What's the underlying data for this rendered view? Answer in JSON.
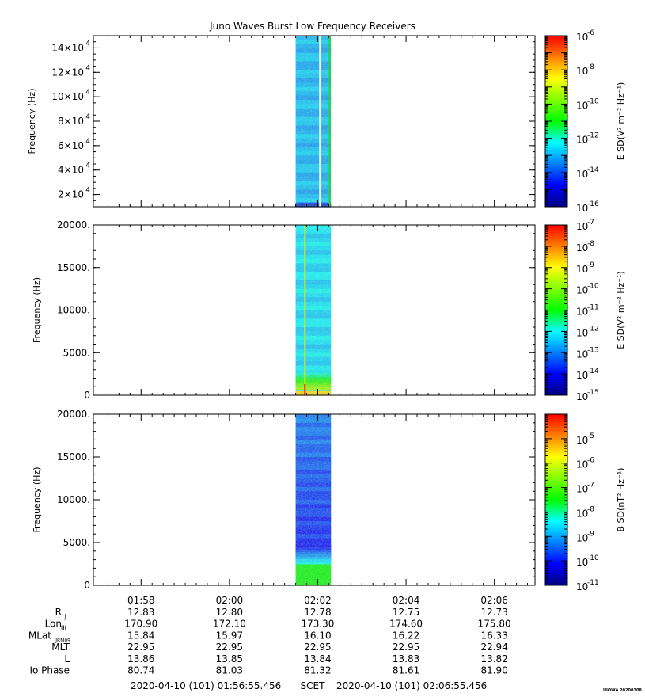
{
  "title": "Juno Waves Burst Low Frequency Receivers",
  "credit": "UIOWA 20200308",
  "colors": {
    "background": "#ffffff",
    "axis": "#000000",
    "colormap": [
      "#00007f",
      "#0000ff",
      "#0080ff",
      "#00ffff",
      "#00ff00",
      "#80ff00",
      "#ffff00",
      "#ff8000",
      "#ff0000"
    ]
  },
  "time_axis": {
    "tick_labels": [
      "01:58",
      "02:00",
      "02:02",
      "02:04",
      "02:06"
    ],
    "start_label": "2020-04-10 (101) 01:56:55.456",
    "scet_label": "SCET",
    "end_label": "2020-04-10 (101) 02:06:55.456"
  },
  "ephemeris": {
    "rows": [
      {
        "name": "R",
        "sub": "J",
        "values": [
          "12.83",
          "12.80",
          "12.78",
          "12.75",
          "12.73"
        ]
      },
      {
        "name": "Lon",
        "sub": "III",
        "values": [
          "170.90",
          "172.10",
          "173.30",
          "174.60",
          "175.80"
        ]
      },
      {
        "name": "MLat",
        "sub": "JRM09",
        "values": [
          "15.84",
          "15.97",
          "16.10",
          "16.22",
          "16.33"
        ]
      },
      {
        "name": "MLT",
        "sub": "",
        "values": [
          "22.95",
          "22.95",
          "22.95",
          "22.95",
          "22.94"
        ]
      },
      {
        "name": "L",
        "sub": "",
        "values": [
          "13.86",
          "13.85",
          "13.84",
          "13.83",
          "13.82"
        ]
      },
      {
        "name": "Io Phase",
        "sub": "",
        "values": [
          "80.74",
          "81.03",
          "81.32",
          "81.61",
          "81.90"
        ]
      }
    ]
  },
  "chart_data": [
    {
      "type": "heatmap",
      "title": "Juno Waves Burst Low Frequency Receivers",
      "ylabel": "Frequency (Hz)",
      "ylim": [
        10000,
        150000
      ],
      "yticks": [
        {
          "value": 20000,
          "mant": "2",
          "exp": "4"
        },
        {
          "value": 40000,
          "mant": "4",
          "exp": "4"
        },
        {
          "value": 60000,
          "mant": "6",
          "exp": "4"
        },
        {
          "value": 80000,
          "mant": "8",
          "exp": "4"
        },
        {
          "value": 100000,
          "mant": "10",
          "exp": "4"
        },
        {
          "value": 120000,
          "mant": "12",
          "exp": "4"
        },
        {
          "value": 140000,
          "mant": "14",
          "exp": "4"
        }
      ],
      "xlim_min": [
        -5.08,
        4.92
      ],
      "data_interval_min": [
        -0.5,
        0.3
      ],
      "features": [
        {
          "kind": "gap-line",
          "x_min": 0.05,
          "color": "#ffffff"
        },
        {
          "kind": "line",
          "x_min": 0.27,
          "color": "#33cc33"
        }
      ],
      "baseline_level": 0.31,
      "low_band": {
        "max_freq": 13000,
        "level": 0.18
      },
      "colorbar": {
        "label_main": "E SD(V",
        "label_units": [
          [
            "2",
            ""
          ],
          [
            " m",
            ""
          ],
          [
            "-2",
            ""
          ],
          [
            " Hz",
            ""
          ],
          [
            "-1",
            ""
          ]
        ],
        "label": "E SD(V² m⁻² Hz⁻¹)",
        "scale": "log",
        "range_exp": [
          -16,
          -6
        ],
        "labeled_exps": [
          -16,
          -14,
          -12,
          -10,
          -8,
          -6
        ]
      }
    },
    {
      "type": "heatmap",
      "ylabel": "Frequency (Hz)",
      "ylim": [
        0,
        20000
      ],
      "yticks": [
        {
          "value": 0,
          "text": "0"
        },
        {
          "value": 5000,
          "text": "5000."
        },
        {
          "value": 10000,
          "text": "10000."
        },
        {
          "value": 15000,
          "text": "15000."
        },
        {
          "value": 20000,
          "text": "20000."
        }
      ],
      "xlim_min": [
        -5.08,
        4.92
      ],
      "data_interval_min": [
        -0.5,
        0.3
      ],
      "features": [
        {
          "kind": "line",
          "x_min": -0.29,
          "color": "#e6e600",
          "bottom_color": "#ff2000"
        }
      ],
      "baseline_level": 0.35,
      "low_band": {
        "max_freq": 700,
        "level": 0.78
      },
      "colorbar": {
        "label": "E SD(V² m⁻² Hz⁻¹)",
        "scale": "log",
        "range_exp": [
          -15,
          -7
        ],
        "labeled_exps": [
          -15,
          -14,
          -13,
          -12,
          -11,
          -10,
          -9,
          -8,
          -7
        ]
      }
    },
    {
      "type": "heatmap",
      "ylabel": "Frequency (Hz)",
      "ylim": [
        0,
        20000
      ],
      "yticks": [
        {
          "value": 0,
          "text": "0"
        },
        {
          "value": 5000,
          "text": "5000."
        },
        {
          "value": 10000,
          "text": "10000."
        },
        {
          "value": 15000,
          "text": "15000."
        },
        {
          "value": 20000,
          "text": "20000."
        }
      ],
      "xlim_min": [
        -5.08,
        4.92
      ],
      "data_interval_min": [
        -0.5,
        0.3
      ],
      "features": [],
      "baseline_level": 0.12,
      "low_band": {
        "max_freq": 2500,
        "level": 0.5
      },
      "colorbar": {
        "label": "B SD(nT² Hz⁻¹)",
        "scale": "log",
        "range_exp": [
          -11,
          -4
        ],
        "labeled_exps": [
          -11,
          -10,
          -9,
          -8,
          -7,
          -6,
          -5
        ]
      }
    }
  ]
}
